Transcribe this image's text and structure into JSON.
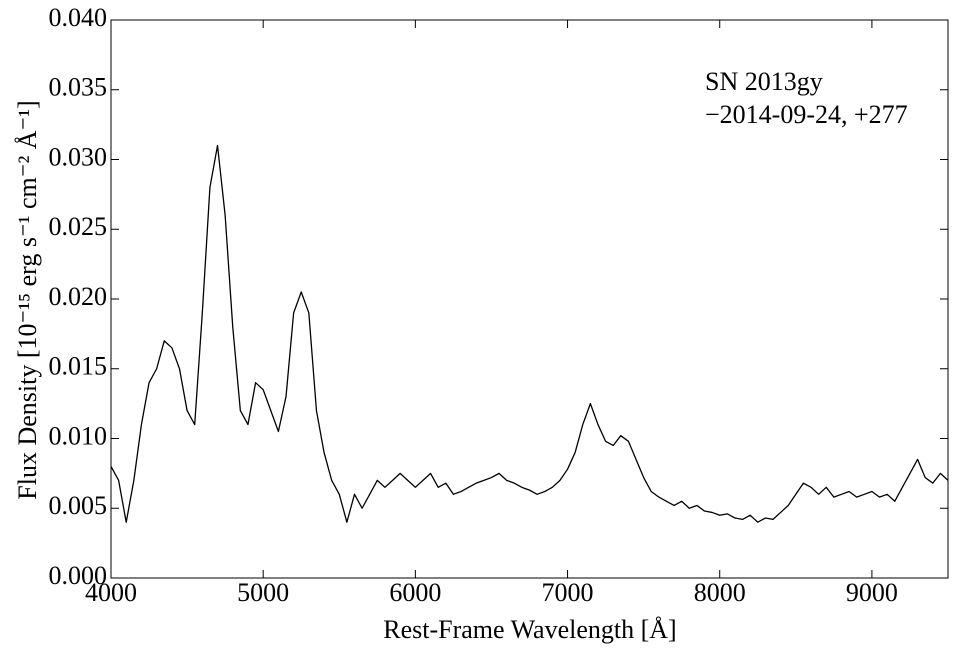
{
  "chart_data": {
    "type": "line",
    "annotations": [
      "SN 2013gy",
      "−2014-09-24, +277"
    ],
    "xlabel": "Rest-Frame Wavelength [Å]",
    "ylabel": "Flux Density [10⁻¹⁵ erg s⁻¹ cm⁻² Å⁻¹]",
    "x": [
      4000,
      4050,
      4100,
      4150,
      4200,
      4250,
      4300,
      4350,
      4400,
      4450,
      4500,
      4550,
      4600,
      4650,
      4700,
      4750,
      4800,
      4850,
      4900,
      4950,
      5000,
      5050,
      5100,
      5150,
      5200,
      5250,
      5300,
      5350,
      5400,
      5450,
      5500,
      5550,
      5600,
      5650,
      5700,
      5750,
      5800,
      5850,
      5900,
      5950,
      6000,
      6050,
      6100,
      6150,
      6200,
      6250,
      6300,
      6350,
      6400,
      6450,
      6500,
      6550,
      6600,
      6650,
      6700,
      6750,
      6800,
      6850,
      6900,
      6950,
      7000,
      7050,
      7100,
      7150,
      7200,
      7250,
      7300,
      7350,
      7400,
      7450,
      7500,
      7550,
      7600,
      7650,
      7700,
      7750,
      7800,
      7850,
      7900,
      7950,
      8000,
      8050,
      8100,
      8150,
      8200,
      8250,
      8300,
      8350,
      8400,
      8450,
      8500,
      8550,
      8600,
      8650,
      8700,
      8750,
      8800,
      8850,
      8900,
      8950,
      9000,
      9050,
      9100,
      9150,
      9200,
      9250,
      9300,
      9350,
      9400,
      9450,
      9500
    ],
    "series": [
      {
        "color": "#000000",
        "values": [
          0.008,
          0.007,
          0.004,
          0.007,
          0.011,
          0.014,
          0.015,
          0.017,
          0.0165,
          0.015,
          0.012,
          0.011,
          0.019,
          0.028,
          0.031,
          0.026,
          0.018,
          0.012,
          0.011,
          0.014,
          0.0135,
          0.012,
          0.0105,
          0.013,
          0.019,
          0.0205,
          0.019,
          0.012,
          0.009,
          0.007,
          0.006,
          0.004,
          0.006,
          0.005,
          0.006,
          0.007,
          0.0065,
          0.007,
          0.0075,
          0.007,
          0.0065,
          0.007,
          0.0075,
          0.0065,
          0.0068,
          0.006,
          0.0062,
          0.0065,
          0.0068,
          0.007,
          0.0072,
          0.0075,
          0.007,
          0.0068,
          0.0065,
          0.0063,
          0.006,
          0.0062,
          0.0065,
          0.007,
          0.0078,
          0.009,
          0.011,
          0.0125,
          0.011,
          0.0098,
          0.0095,
          0.0102,
          0.0098,
          0.0085,
          0.0072,
          0.0062,
          0.0058,
          0.0055,
          0.0052,
          0.0055,
          0.005,
          0.0052,
          0.0048,
          0.0047,
          0.0045,
          0.0046,
          0.0043,
          0.0042,
          0.0045,
          0.004,
          0.0043,
          0.0042,
          0.0047,
          0.0052,
          0.006,
          0.0068,
          0.0065,
          0.006,
          0.0065,
          0.0058,
          0.006,
          0.0062,
          0.0058,
          0.006,
          0.0062,
          0.0058,
          0.006,
          0.0055,
          0.0065,
          0.0075,
          0.0085,
          0.0072,
          0.0068,
          0.0075,
          0.007
        ]
      }
    ],
    "xlim": [
      4000,
      9500
    ],
    "xticks": [
      4000,
      5000,
      6000,
      7000,
      8000,
      9000
    ],
    "ylim": [
      0,
      0.04
    ],
    "yticks": [
      {
        "value": 0,
        "label": "0.000"
      },
      0.005,
      {
        "value": 0.01,
        "label": "0.010"
      },
      0.015,
      {
        "value": 0.02,
        "label": "0.020"
      },
      0.025,
      {
        "value": 0.03,
        "label": "0.030"
      },
      0.035,
      {
        "value": 0.04,
        "label": "0.040"
      }
    ],
    "grid": false
  }
}
